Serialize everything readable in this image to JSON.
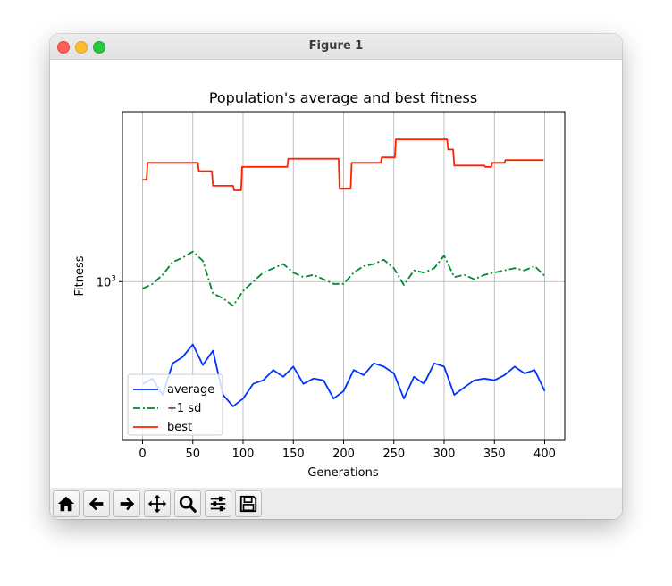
{
  "window": {
    "title": "Figure 1"
  },
  "toolbar": {
    "buttons": [
      {
        "name": "home-button",
        "icon": "home-icon"
      },
      {
        "name": "back-button",
        "icon": "arrow-left-icon"
      },
      {
        "name": "forward-button",
        "icon": "arrow-right-icon"
      },
      {
        "name": "pan-button",
        "icon": "move-icon"
      },
      {
        "name": "zoom-button",
        "icon": "magnifier-icon"
      },
      {
        "name": "configure-subplots-button",
        "icon": "sliders-icon"
      },
      {
        "name": "save-button",
        "icon": "floppy-disk-icon"
      }
    ]
  },
  "chart_data": {
    "type": "line",
    "title": "Population's average and best fitness",
    "xlabel": "Generations",
    "ylabel": "Fitness",
    "xlim": [
      -20,
      420
    ],
    "x_ticks": [
      0,
      50,
      100,
      150,
      200,
      250,
      300,
      350,
      400
    ],
    "yscale": "log",
    "ylim": [
      500,
      2100
    ],
    "y_ticks": [
      1000
    ],
    "y_tick_labels": [
      "10^3"
    ],
    "grid": true,
    "legend": {
      "placement": "lower-left",
      "entries": [
        "average",
        "+1 sd",
        "best"
      ]
    },
    "series": [
      {
        "name": "average",
        "color": "#0033ff",
        "style": "solid",
        "x": [
          0,
          10,
          20,
          30,
          40,
          50,
          60,
          70,
          80,
          90,
          100,
          110,
          120,
          130,
          140,
          150,
          160,
          170,
          180,
          190,
          200,
          210,
          220,
          230,
          240,
          250,
          260,
          270,
          280,
          290,
          300,
          310,
          320,
          330,
          340,
          350,
          360,
          370,
          380,
          390,
          400
        ],
        "y": [
          640,
          655,
          610,
          700,
          720,
          760,
          695,
          740,
          610,
          580,
          600,
          640,
          650,
          680,
          660,
          690,
          640,
          655,
          650,
          600,
          620,
          680,
          665,
          700,
          690,
          670,
          600,
          660,
          640,
          700,
          690,
          610,
          630,
          650,
          655,
          650,
          665,
          690,
          670,
          680,
          620
        ]
      },
      {
        "name": "+1 sd",
        "color": "#008833",
        "style": "dashdot",
        "x": [
          0,
          10,
          20,
          30,
          40,
          50,
          60,
          70,
          80,
          90,
          100,
          110,
          120,
          130,
          140,
          150,
          160,
          170,
          180,
          190,
          200,
          210,
          220,
          230,
          240,
          250,
          260,
          270,
          280,
          290,
          300,
          310,
          320,
          330,
          340,
          350,
          360,
          370,
          380,
          390,
          400
        ],
        "y": [
          970,
          990,
          1030,
          1090,
          1110,
          1140,
          1095,
          950,
          930,
          900,
          960,
          1000,
          1040,
          1060,
          1080,
          1040,
          1020,
          1030,
          1010,
          990,
          990,
          1040,
          1070,
          1080,
          1100,
          1060,
          985,
          1050,
          1040,
          1060,
          1120,
          1020,
          1030,
          1010,
          1030,
          1040,
          1050,
          1060,
          1050,
          1070,
          1025
        ]
      },
      {
        "name": "best",
        "color": "#ff2200",
        "style": "solid",
        "x": [
          0,
          4,
          5,
          55,
          56,
          69,
          70,
          90,
          91,
          98,
          99,
          144,
          145,
          195,
          196,
          207,
          208,
          237,
          238,
          251,
          252,
          303,
          304,
          309,
          310,
          340,
          341,
          347,
          348,
          360,
          361,
          399
        ],
        "y": [
          1560,
          1560,
          1680,
          1680,
          1620,
          1620,
          1520,
          1520,
          1490,
          1490,
          1650,
          1650,
          1710,
          1710,
          1500,
          1500,
          1680,
          1680,
          1720,
          1720,
          1860,
          1860,
          1780,
          1780,
          1660,
          1660,
          1650,
          1650,
          1680,
          1680,
          1700,
          1700
        ]
      }
    ]
  }
}
